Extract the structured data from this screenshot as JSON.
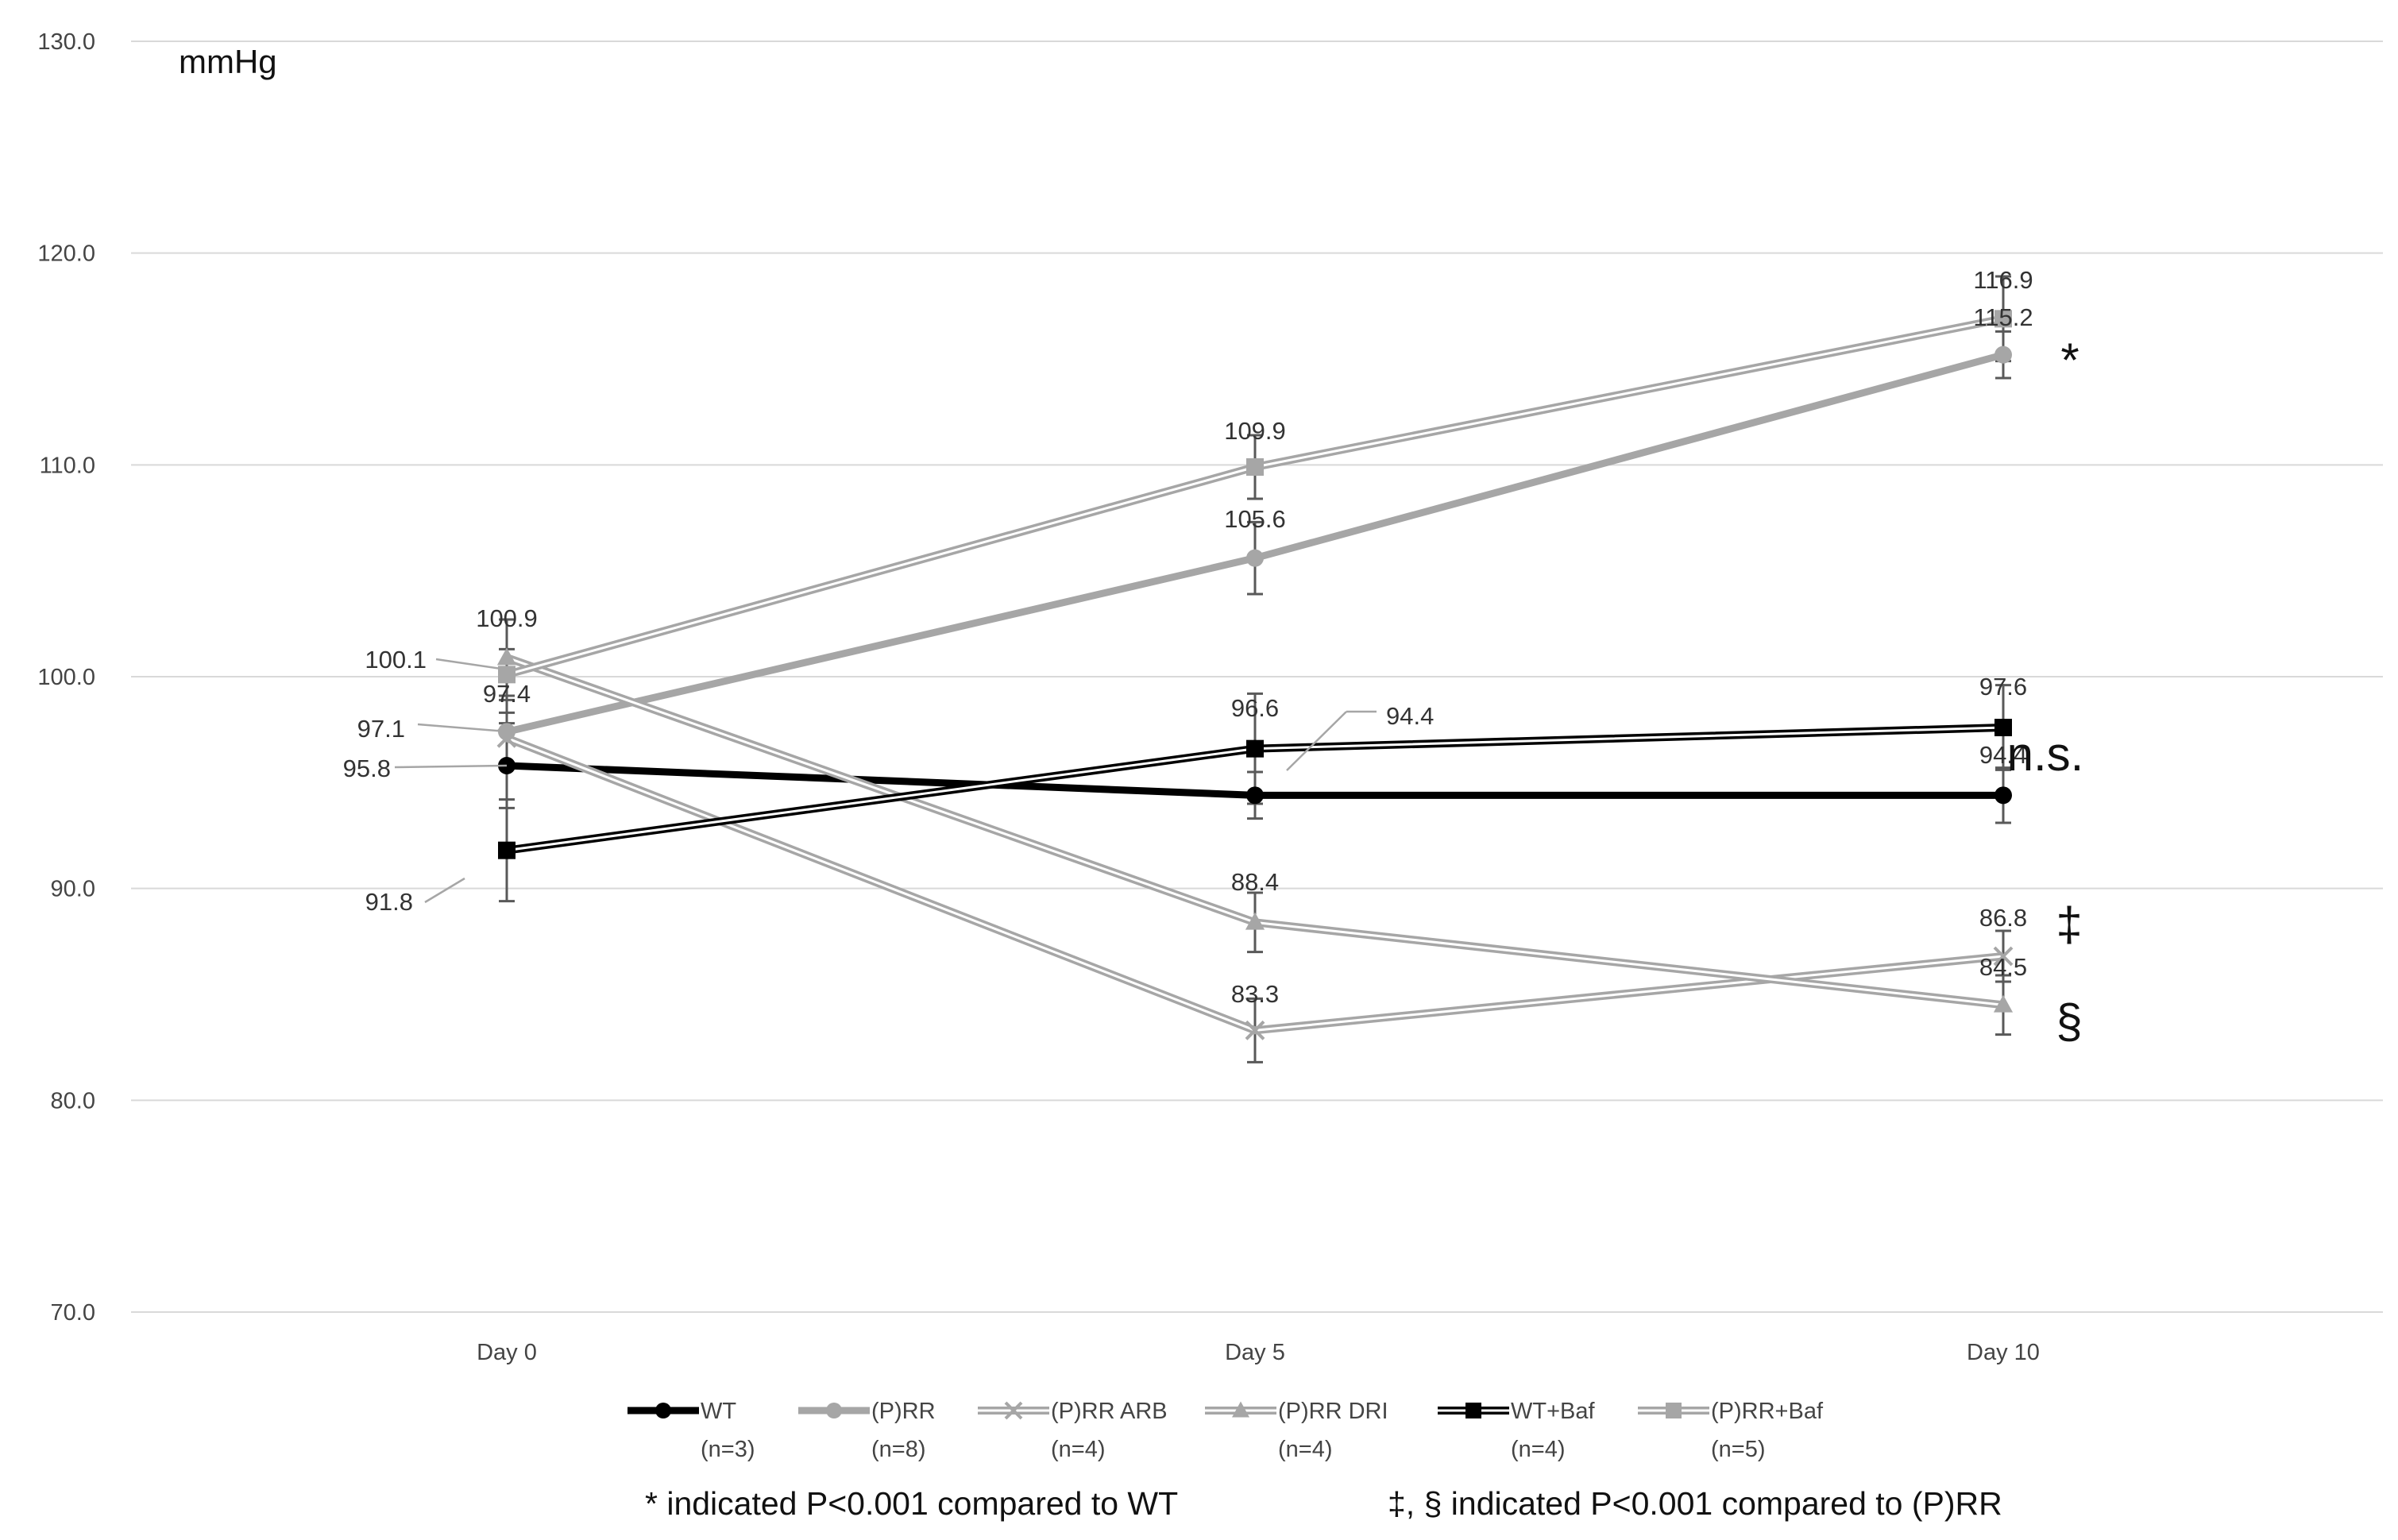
{
  "chart_data": {
    "type": "line",
    "unit_label": "mmHg",
    "categories": [
      "Day 0",
      "Day 5",
      "Day 10"
    ],
    "ylim": [
      70.0,
      130.0
    ],
    "yticks": [
      "70.0",
      "80.0",
      "90.0",
      "100.0",
      "110.0",
      "120.0",
      "130.0"
    ],
    "grid": true,
    "series": [
      {
        "name": "WT",
        "n": "(n=3)",
        "values": [
          95.8,
          94.4,
          94.4
        ],
        "errors": [
          2.0,
          1.1,
          1.3
        ],
        "labels": [
          "95.8",
          "94.4",
          "94.4"
        ],
        "style": "black-thick",
        "marker": "circle",
        "color": "#000000"
      },
      {
        "name": "(P)RR",
        "n": "(n=8)",
        "values": [
          97.4,
          105.6,
          115.2
        ],
        "errors": [
          1.7,
          1.7,
          1.1
        ],
        "labels": [
          "97.4",
          "105.6",
          "115.2"
        ],
        "style": "gray-thick",
        "marker": "circle",
        "color": "#a6a6a6"
      },
      {
        "name": "(P)RR ARB",
        "n": "(n=4)",
        "values": [
          97.1,
          83.3,
          86.8
        ],
        "errors": [
          1.2,
          1.5,
          1.2
        ],
        "labels": [
          "97.1",
          "83.3",
          "86.8"
        ],
        "style": "gray-double",
        "marker": "x",
        "color": "#a6a6a6"
      },
      {
        "name": "(P)RR DRI",
        "n": "(n=4)",
        "values": [
          100.9,
          88.4,
          84.5
        ],
        "errors": [
          1.8,
          1.4,
          1.4
        ],
        "labels": [
          "100.9",
          "88.4",
          "84.5"
        ],
        "style": "gray-double",
        "marker": "triangle",
        "color": "#a6a6a6"
      },
      {
        "name": "WT+Baf",
        "n": "(n=4)",
        "values": [
          91.8,
          96.6,
          97.6
        ],
        "errors": [
          2.4,
          2.6,
          2.0
        ],
        "labels": [
          "91.8",
          "96.6",
          "97.6"
        ],
        "style": "black-double",
        "marker": "square",
        "color": "#000000"
      },
      {
        "name": "(P)RR+Baf",
        "n": "(n=5)",
        "values": [
          100.1,
          109.9,
          116.9
        ],
        "errors": [
          1.2,
          1.5,
          2.0
        ],
        "labels": [
          "100.1",
          "109.9",
          "116.9"
        ],
        "style": "gray-double",
        "marker": "square",
        "color": "#a6a6a6"
      }
    ],
    "significance_marks": [
      "*",
      "n.s.",
      "‡",
      "§"
    ],
    "footnotes": [
      "* indicated P<0.001 compared to WT",
      "‡, § indicated P<0.001 compared to (P)RR"
    ]
  }
}
